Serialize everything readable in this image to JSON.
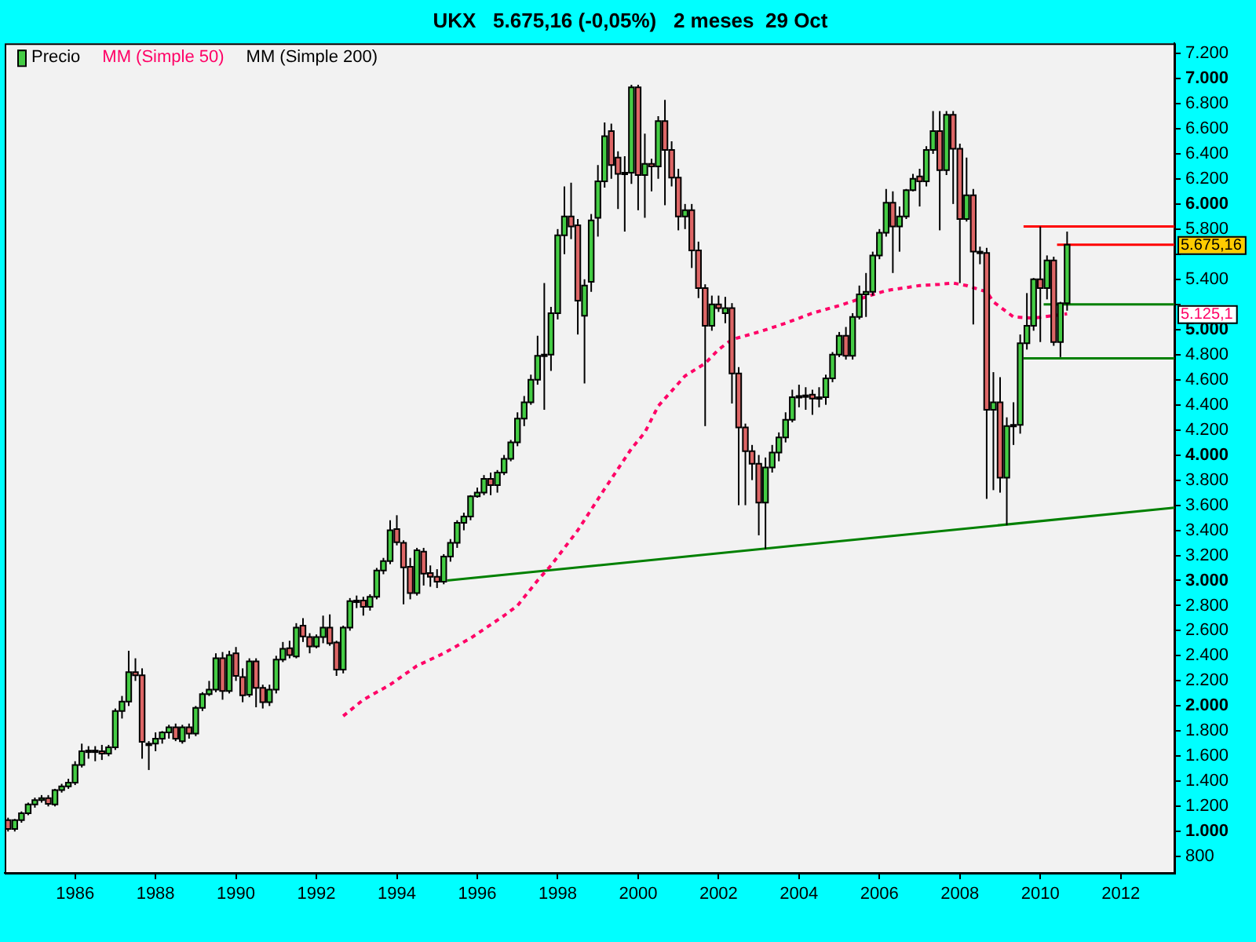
{
  "chart_data": {
    "type": "candlestick",
    "title": "UKX   5.675,16 (-0,05%)   2 meses  29 Oct",
    "series": [
      {
        "type": "candlestick",
        "name": "Precio",
        "color": "#000000",
        "x": [
          "1984-05",
          "1984-07",
          "1984-09",
          "1984-11",
          "1985-01",
          "1985-03",
          "1985-05",
          "1985-07",
          "1985-09",
          "1985-11",
          "1986-01",
          "1986-03",
          "1986-05",
          "1986-07",
          "1986-09",
          "1986-11",
          "1987-01",
          "1987-03",
          "1987-05",
          "1987-07",
          "1987-09",
          "1987-11",
          "1988-01",
          "1988-03",
          "1988-05",
          "1988-07",
          "1988-09",
          "1988-11",
          "1989-01",
          "1989-03",
          "1989-05",
          "1989-07",
          "1989-09",
          "1989-11",
          "1990-01",
          "1990-03",
          "1990-05",
          "1990-07",
          "1990-09",
          "1990-11",
          "1991-01",
          "1991-03",
          "1991-05",
          "1991-07",
          "1991-09",
          "1991-11",
          "1992-01",
          "1992-03",
          "1992-05",
          "1992-07",
          "1992-09",
          "1992-11",
          "1993-01",
          "1993-03",
          "1993-05",
          "1993-07",
          "1993-09",
          "1993-11",
          "1994-01",
          "1994-03",
          "1994-05",
          "1994-07",
          "1994-09",
          "1994-11",
          "1995-01",
          "1995-03",
          "1995-05",
          "1995-07",
          "1995-09",
          "1995-11",
          "1996-01",
          "1996-03",
          "1996-05",
          "1996-07",
          "1996-09",
          "1996-11",
          "1997-01",
          "1997-03",
          "1997-05",
          "1997-07",
          "1997-09",
          "1997-11",
          "1998-01",
          "1998-03",
          "1998-05",
          "1998-07",
          "1998-09",
          "1998-11",
          "1999-01",
          "1999-03",
          "1999-05",
          "1999-07",
          "1999-09",
          "1999-11",
          "2000-01",
          "2000-03",
          "2000-05",
          "2000-07",
          "2000-09",
          "2000-11",
          "2001-01",
          "2001-03",
          "2001-05",
          "2001-07",
          "2001-09",
          "2001-11",
          "2002-01",
          "2002-03",
          "2002-05",
          "2002-07",
          "2002-09",
          "2002-11",
          "2003-01",
          "2003-03",
          "2003-05",
          "2003-07",
          "2003-09",
          "2003-11",
          "2004-01",
          "2004-03",
          "2004-05",
          "2004-07",
          "2004-09",
          "2004-11",
          "2005-01",
          "2005-03",
          "2005-05",
          "2005-07",
          "2005-09",
          "2005-11",
          "2006-01",
          "2006-03",
          "2006-05",
          "2006-07",
          "2006-09",
          "2006-11",
          "2007-01",
          "2007-03",
          "2007-05",
          "2007-07",
          "2007-09",
          "2007-11",
          "2008-01",
          "2008-03",
          "2008-05",
          "2008-07",
          "2008-09",
          "2008-11",
          "2009-01",
          "2009-03",
          "2009-05",
          "2009-07",
          "2009-09",
          "2009-11",
          "2010-01",
          "2010-03",
          "2010-05",
          "2010-07",
          "2010-09"
        ],
        "ohlc": [
          [
            1090,
            1110,
            1000,
            1020
          ],
          [
            1020,
            1100,
            1000,
            1090
          ],
          [
            1090,
            1160,
            1070,
            1145
          ],
          [
            1145,
            1230,
            1130,
            1215
          ],
          [
            1215,
            1270,
            1190,
            1250
          ],
          [
            1250,
            1290,
            1230,
            1265
          ],
          [
            1265,
            1290,
            1200,
            1220
          ],
          [
            1215,
            1340,
            1200,
            1330
          ],
          [
            1330,
            1380,
            1310,
            1360
          ],
          [
            1360,
            1420,
            1340,
            1390
          ],
          [
            1390,
            1560,
            1370,
            1530
          ],
          [
            1530,
            1700,
            1510,
            1640
          ],
          [
            1640,
            1680,
            1580,
            1645
          ],
          [
            1645,
            1680,
            1560,
            1640
          ],
          [
            1640,
            1690,
            1570,
            1620
          ],
          [
            1620,
            1690,
            1600,
            1670
          ],
          [
            1670,
            1980,
            1650,
            1960
          ],
          [
            1960,
            2080,
            1900,
            2035
          ],
          [
            2035,
            2440,
            2000,
            2270
          ],
          [
            2270,
            2380,
            2200,
            2245
          ],
          [
            2245,
            2300,
            1580,
            1715
          ],
          [
            1700,
            1720,
            1490,
            1690
          ],
          [
            1700,
            1790,
            1640,
            1740
          ],
          [
            1740,
            1800,
            1700,
            1790
          ],
          [
            1790,
            1850,
            1740,
            1830
          ],
          [
            1830,
            1860,
            1720,
            1740
          ],
          [
            1720,
            1850,
            1700,
            1830
          ],
          [
            1830,
            1860,
            1740,
            1780
          ],
          [
            1780,
            2000,
            1760,
            1985
          ],
          [
            1985,
            2110,
            1960,
            2095
          ],
          [
            2095,
            2200,
            2080,
            2130
          ],
          [
            2130,
            2420,
            2110,
            2380
          ],
          [
            2380,
            2430,
            2050,
            2120
          ],
          [
            2120,
            2440,
            2100,
            2405
          ],
          [
            2420,
            2470,
            2200,
            2240
          ],
          [
            2230,
            2300,
            2030,
            2085
          ],
          [
            2090,
            2380,
            2070,
            2355
          ],
          [
            2355,
            2380,
            1990,
            2145
          ],
          [
            2145,
            2170,
            1980,
            2030
          ],
          [
            2030,
            2170,
            2000,
            2130
          ],
          [
            2130,
            2400,
            2100,
            2370
          ],
          [
            2370,
            2510,
            2350,
            2455
          ],
          [
            2460,
            2520,
            2380,
            2405
          ],
          [
            2395,
            2660,
            2380,
            2625
          ],
          [
            2640,
            2700,
            2510,
            2555
          ],
          [
            2550,
            2580,
            2420,
            2475
          ],
          [
            2475,
            2570,
            2460,
            2550
          ],
          [
            2550,
            2720,
            2500,
            2625
          ],
          [
            2625,
            2730,
            2480,
            2500
          ],
          [
            2505,
            2520,
            2240,
            2290
          ],
          [
            2290,
            2640,
            2260,
            2625
          ],
          [
            2625,
            2860,
            2600,
            2835
          ],
          [
            2830,
            2880,
            2780,
            2840
          ],
          [
            2840,
            2870,
            2720,
            2790
          ],
          [
            2790,
            2890,
            2760,
            2870
          ],
          [
            2870,
            3100,
            2850,
            3080
          ],
          [
            3080,
            3180,
            3050,
            3155
          ],
          [
            3155,
            3480,
            3130,
            3400
          ],
          [
            3410,
            3520,
            3280,
            3305
          ],
          [
            3300,
            3320,
            2810,
            3105
          ],
          [
            3110,
            3180,
            2850,
            2900
          ],
          [
            2900,
            3260,
            2880,
            3240
          ],
          [
            3230,
            3260,
            2960,
            3055
          ],
          [
            3060,
            3120,
            2950,
            3030
          ],
          [
            3030,
            3090,
            2940,
            2990
          ],
          [
            2990,
            3210,
            2970,
            3190
          ],
          [
            3190,
            3330,
            3150,
            3300
          ],
          [
            3300,
            3480,
            3260,
            3460
          ],
          [
            3460,
            3540,
            3400,
            3510
          ],
          [
            3510,
            3680,
            3480,
            3670
          ],
          [
            3670,
            3740,
            3660,
            3700
          ],
          [
            3700,
            3840,
            3680,
            3810
          ],
          [
            3810,
            3860,
            3680,
            3760
          ],
          [
            3760,
            3880,
            3700,
            3860
          ],
          [
            3860,
            4000,
            3840,
            3970
          ],
          [
            3970,
            4120,
            3950,
            4100
          ],
          [
            4100,
            4340,
            4070,
            4290
          ],
          [
            4290,
            4470,
            4230,
            4420
          ],
          [
            4420,
            4640,
            4400,
            4600
          ],
          [
            4600,
            4950,
            4560,
            4790
          ],
          [
            4790,
            5370,
            4360,
            4800
          ],
          [
            4800,
            5180,
            4670,
            5130
          ],
          [
            5130,
            5800,
            5080,
            5750
          ],
          [
            5750,
            6140,
            5600,
            5900
          ],
          [
            5900,
            6170,
            5720,
            5820
          ],
          [
            5830,
            5880,
            4960,
            5230
          ],
          [
            5110,
            5400,
            4570,
            5350
          ],
          [
            5380,
            5920,
            5300,
            5870
          ],
          [
            5890,
            6310,
            5740,
            6180
          ],
          [
            6180,
            6650,
            6130,
            6540
          ],
          [
            6580,
            6640,
            6200,
            6310
          ],
          [
            6370,
            6420,
            5960,
            6240
          ],
          [
            6240,
            6380,
            5780,
            6250
          ],
          [
            6250,
            6950,
            6160,
            6930
          ],
          [
            6930,
            6950,
            5950,
            6230
          ],
          [
            6230,
            6560,
            5890,
            6320
          ],
          [
            6320,
            6360,
            6100,
            6300
          ],
          [
            6300,
            6700,
            6200,
            6660
          ],
          [
            6660,
            6830,
            5990,
            6430
          ],
          [
            6430,
            6500,
            6140,
            6210
          ],
          [
            6210,
            6280,
            5790,
            5900
          ],
          [
            5900,
            6000,
            5800,
            5950
          ],
          [
            5950,
            6000,
            5490,
            5630
          ],
          [
            5630,
            5700,
            5250,
            5330
          ],
          [
            5330,
            5360,
            4230,
            5030
          ],
          [
            5030,
            5270,
            4990,
            5200
          ],
          [
            5200,
            5270,
            5140,
            5170
          ],
          [
            5130,
            5260,
            5050,
            5170
          ],
          [
            5170,
            5210,
            4410,
            4650
          ],
          [
            4650,
            4700,
            3600,
            4220
          ],
          [
            4220,
            4250,
            3600,
            4030
          ],
          [
            4030,
            4080,
            3800,
            3930
          ],
          [
            3930,
            4000,
            3360,
            3620
          ],
          [
            3620,
            3980,
            3250,
            3900
          ],
          [
            3900,
            4080,
            3860,
            4020
          ],
          [
            4020,
            4180,
            3950,
            4140
          ],
          [
            4140,
            4340,
            4100,
            4280
          ],
          [
            4280,
            4520,
            4260,
            4460
          ],
          [
            4460,
            4560,
            4380,
            4470
          ],
          [
            4470,
            4540,
            4360,
            4475
          ],
          [
            4480,
            4520,
            4320,
            4450
          ],
          [
            4450,
            4540,
            4380,
            4460
          ],
          [
            4460,
            4640,
            4400,
            4610
          ],
          [
            4610,
            4820,
            4580,
            4800
          ],
          [
            4800,
            4980,
            4780,
            4950
          ],
          [
            4950,
            5020,
            4760,
            4790
          ],
          [
            4790,
            5130,
            4760,
            5100
          ],
          [
            5100,
            5350,
            5080,
            5280
          ],
          [
            5280,
            5450,
            5100,
            5300
          ],
          [
            5300,
            5620,
            5270,
            5590
          ],
          [
            5590,
            5800,
            5560,
            5770
          ],
          [
            5770,
            6120,
            5740,
            6010
          ],
          [
            6010,
            6100,
            5450,
            5820
          ],
          [
            5820,
            5980,
            5620,
            5900
          ],
          [
            5900,
            6120,
            5880,
            6110
          ],
          [
            6110,
            6240,
            6100,
            6200
          ],
          [
            6220,
            6280,
            5980,
            6180
          ],
          [
            6180,
            6460,
            6140,
            6430
          ],
          [
            6430,
            6740,
            6400,
            6580
          ],
          [
            6580,
            6740,
            5790,
            6270
          ],
          [
            6270,
            6740,
            6230,
            6710
          ],
          [
            6710,
            6740,
            6000,
            6440
          ],
          [
            6440,
            6480,
            5370,
            5880
          ],
          [
            5880,
            6370,
            5860,
            6070
          ],
          [
            6070,
            6120,
            5040,
            5620
          ],
          [
            5620,
            5660,
            5520,
            5610
          ],
          [
            5610,
            5650,
            3650,
            4360
          ],
          [
            4360,
            4660,
            3720,
            4420
          ],
          [
            4420,
            4620,
            3700,
            3820
          ],
          [
            3820,
            4300,
            3440,
            4230
          ],
          [
            4230,
            4420,
            4080,
            4240
          ],
          [
            4240,
            4960,
            4170,
            4890
          ],
          [
            4890,
            5290,
            4840,
            5030
          ],
          [
            5030,
            5410,
            4990,
            5400
          ],
          [
            5400,
            5820,
            4900,
            5330
          ],
          [
            5330,
            5590,
            5240,
            5550
          ],
          [
            5550,
            5580,
            4870,
            4900
          ],
          [
            4900,
            5220,
            4780,
            5210
          ],
          [
            5210,
            5780,
            5150,
            5675.16
          ]
        ],
        "colors": [
          "#dd6666",
          "#44cc44",
          "#44cc44",
          "#44cc44",
          "#44cc44",
          "#44cc44",
          "#dd6666",
          "#44cc44",
          "#44cc44",
          "#44cc44",
          "#44cc44",
          "#44cc44",
          "#44cc44",
          "#dd6666",
          "#dd6666",
          "#44cc44",
          "#44cc44",
          "#44cc44",
          "#44cc44",
          "#dd6666",
          "#dd6666",
          "#dd6666",
          "#44cc44",
          "#44cc44",
          "#44cc44",
          "#dd6666",
          "#44cc44",
          "#dd6666",
          "#44cc44",
          "#44cc44",
          "#44cc44",
          "#44cc44",
          "#dd6666",
          "#44cc44",
          "#dd6666",
          "#dd6666",
          "#44cc44",
          "#dd6666",
          "#dd6666",
          "#44cc44",
          "#44cc44",
          "#44cc44",
          "#dd6666",
          "#44cc44",
          "#dd6666",
          "#dd6666",
          "#44cc44",
          "#44cc44",
          "#dd6666",
          "#dd6666",
          "#44cc44",
          "#44cc44",
          "#44cc44",
          "#dd6666",
          "#44cc44",
          "#44cc44",
          "#44cc44",
          "#44cc44",
          "#dd6666",
          "#dd6666",
          "#dd6666",
          "#44cc44",
          "#dd6666",
          "#dd6666",
          "#dd6666",
          "#44cc44",
          "#44cc44",
          "#44cc44",
          "#44cc44",
          "#44cc44",
          "#44cc44",
          "#44cc44",
          "#dd6666",
          "#44cc44",
          "#44cc44",
          "#44cc44",
          "#44cc44",
          "#44cc44",
          "#44cc44",
          "#44cc44",
          "#44cc44",
          "#44cc44",
          "#44cc44",
          "#44cc44",
          "#dd6666",
          "#dd6666",
          "#44cc44",
          "#44cc44",
          "#44cc44",
          "#44cc44",
          "#dd6666",
          "#dd6666",
          "#44cc44",
          "#44cc44",
          "#dd6666",
          "#44cc44",
          "#dd6666",
          "#44cc44",
          "#dd6666",
          "#dd6666",
          "#dd6666",
          "#44cc44",
          "#dd6666",
          "#dd6666",
          "#dd6666",
          "#44cc44",
          "#dd6666",
          "#44cc44",
          "#dd6666",
          "#dd6666",
          "#dd6666",
          "#dd6666",
          "#dd6666",
          "#44cc44",
          "#44cc44",
          "#44cc44",
          "#44cc44",
          "#44cc44",
          "#44cc44",
          "#44cc44",
          "#dd6666",
          "#44cc44",
          "#44cc44",
          "#44cc44",
          "#44cc44",
          "#dd6666",
          "#44cc44",
          "#44cc44",
          "#44cc44",
          "#44cc44",
          "#44cc44",
          "#44cc44",
          "#dd6666",
          "#44cc44",
          "#44cc44",
          "#44cc44",
          "#dd6666",
          "#44cc44",
          "#44cc44",
          "#dd6666",
          "#44cc44",
          "#dd6666",
          "#dd6666",
          "#44cc44",
          "#dd6666",
          "#dd6666",
          "#dd6666",
          "#44cc44",
          "#dd6666",
          "#44cc44",
          "#44cc44",
          "#44cc44",
          "#44cc44",
          "#44cc44",
          "#dd6666",
          "#44cc44",
          "#dd6666",
          "#44cc44",
          "#44cc44"
        ]
      },
      {
        "type": "line",
        "name": "MM (Simple 50)",
        "color": "#ff0066",
        "line_style": "dashed",
        "x": [
          "1992-09",
          "1993-03",
          "1993-11",
          "1994-07",
          "1995-03",
          "1995-11",
          "1996-09",
          "1997-01",
          "1997-07",
          "1997-11",
          "1998-07",
          "1999-03",
          "1999-11",
          "2000-03",
          "2000-07",
          "2000-11",
          "2001-03",
          "2001-09",
          "2002-01",
          "2002-05",
          "2003-01",
          "2003-09",
          "2004-05",
          "2005-01",
          "2005-09",
          "2006-03",
          "2007-01",
          "2007-07",
          "2007-11",
          "2008-03",
          "2008-09",
          "2008-11",
          "2009-05",
          "2009-11",
          "2010-09"
        ],
        "values": [
          1920,
          2050,
          2170,
          2320,
          2420,
          2540,
          2720,
          2800,
          3000,
          3120,
          3400,
          3730,
          4050,
          4180,
          4390,
          4510,
          4630,
          4730,
          4840,
          4920,
          4980,
          5050,
          5130,
          5190,
          5260,
          5310,
          5350,
          5360,
          5370,
          5350,
          5300,
          5220,
          5100,
          5090,
          5125.1
        ]
      },
      {
        "type": "line",
        "name": "MM (Simple 200)",
        "color": "#000000"
      },
      {
        "type": "line",
        "color": "#008000",
        "x": [
          "1995-04",
          "2013-05"
        ],
        "values": [
          3000,
          3580
        ]
      },
      {
        "type": "line",
        "color": "#ff0000",
        "x": [
          "2009-08",
          "2013-05"
        ],
        "values": [
          5820,
          5820
        ]
      },
      {
        "type": "line",
        "color": "#ff0000",
        "x": [
          "2010-06",
          "2013-05"
        ],
        "values": [
          5675,
          5675
        ]
      },
      {
        "type": "line",
        "color": "#008000",
        "x": [
          "2010-02",
          "2013-05"
        ],
        "values": [
          5200,
          5200
        ]
      },
      {
        "type": "line",
        "color": "#008000",
        "x": [
          "2009-08",
          "2013-05"
        ],
        "values": [
          4770,
          4770
        ]
      }
    ],
    "xlim": [
      "1984-04",
      "2013-05"
    ],
    "xticks": [
      "1986",
      "1988",
      "1990",
      "1992",
      "1994",
      "1996",
      "1998",
      "2000",
      "2002",
      "2004",
      "2006",
      "2008",
      "2010",
      "2012"
    ],
    "ylim": [
      670,
      7280
    ],
    "yticks": [
      800,
      {
        "value": 1000,
        "label": "1.000"
      },
      {
        "value": 1200,
        "label": "1.200"
      },
      {
        "value": 1400,
        "label": "1.400"
      },
      {
        "value": 1600,
        "label": "1.600"
      },
      {
        "value": 1800,
        "label": "1.800"
      },
      {
        "value": 2000,
        "label": "2.000"
      },
      {
        "value": 2200,
        "label": "2.200"
      },
      {
        "value": 2400,
        "label": "2.400"
      },
      {
        "value": 2600,
        "label": "2.600"
      },
      {
        "value": 2800,
        "label": "2.800"
      },
      {
        "value": 3000,
        "label": "3.000"
      },
      {
        "value": 3200,
        "label": "3.200"
      },
      {
        "value": 3400,
        "label": "3.400"
      },
      {
        "value": 3600,
        "label": "3.600"
      },
      {
        "value": 3800,
        "label": "3.800"
      },
      {
        "value": 4000,
        "label": "4.000"
      },
      {
        "value": 4200,
        "label": "4.200"
      },
      {
        "value": 4400,
        "label": "4.400"
      },
      {
        "value": 4600,
        "label": "4.600"
      },
      {
        "value": 4800,
        "label": "4.800"
      },
      {
        "value": 5000,
        "label": "5.000"
      },
      {
        "value": 5200,
        "label": null
      },
      {
        "value": 5400,
        "label": "5.400"
      },
      {
        "value": 5600,
        "label": null
      },
      {
        "value": 5800,
        "label": "5.800"
      },
      {
        "value": 6000,
        "label": "6.000"
      },
      {
        "value": 6200,
        "label": "6.200"
      },
      {
        "value": 6400,
        "label": "6.400"
      },
      {
        "value": 6600,
        "label": "6.600"
      },
      {
        "value": 6800,
        "label": "6.800"
      },
      {
        "value": 7000,
        "label": "7.000"
      },
      {
        "value": 7200,
        "label": "7.200"
      }
    ],
    "legend": "top left",
    "grid": false,
    "annotations": [
      "5.675,16",
      "5.125,1"
    ]
  }
}
